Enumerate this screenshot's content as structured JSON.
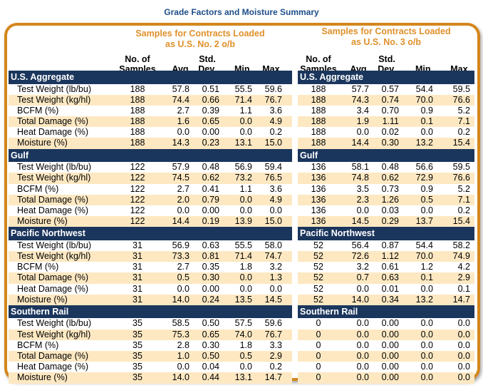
{
  "title": "Grade Factors and Moisture Summary",
  "colors": {
    "title": "#1d4e89",
    "frame": "#d4861c",
    "group_title": "#e0902a",
    "section_band": "#1b365d",
    "alt_row": "#fde8c2"
  },
  "columns": {
    "samples_line1": "No. of",
    "samples_line2": "Samples",
    "avg": "Avg.",
    "std_line1": "Std.",
    "std_line2": "Dev.",
    "min": "Min.",
    "max": "Max."
  },
  "row_labels": [
    "Test Weight (lb/bu)",
    "Test Weight (kg/hl)",
    "BCFM (%)",
    "Total Damage (%)",
    "Heat Damage (%)",
    "Moisture (%)"
  ],
  "left": {
    "group_title_line1": "Samples for Contracts Loaded",
    "group_title_line2": "as U.S. No. 2 o/b",
    "sections": [
      {
        "name": "U.S. Aggregate",
        "rows": [
          [
            "188",
            "57.8",
            "0.51",
            "55.5",
            "59.6"
          ],
          [
            "188",
            "74.4",
            "0.66",
            "71.4",
            "76.7"
          ],
          [
            "188",
            "2.7",
            "0.39",
            "1.1",
            "3.6"
          ],
          [
            "188",
            "1.6",
            "0.65",
            "0.0",
            "4.9"
          ],
          [
            "188",
            "0.0",
            "0.00",
            "0.0",
            "0.2"
          ],
          [
            "188",
            "14.3",
            "0.23",
            "13.1",
            "15.0"
          ]
        ]
      },
      {
        "name": "Gulf",
        "rows": [
          [
            "122",
            "57.9",
            "0.48",
            "56.9",
            "59.4"
          ],
          [
            "122",
            "74.5",
            "0.62",
            "73.2",
            "76.5"
          ],
          [
            "122",
            "2.7",
            "0.41",
            "1.1",
            "3.6"
          ],
          [
            "122",
            "2.0",
            "0.79",
            "0.0",
            "4.9"
          ],
          [
            "122",
            "0.0",
            "0.00",
            "0.0",
            "0.0"
          ],
          [
            "122",
            "14.4",
            "0.19",
            "13.9",
            "15.0"
          ]
        ]
      },
      {
        "name": "Pacific Northwest",
        "rows": [
          [
            "31",
            "56.9",
            "0.63",
            "55.5",
            "58.0"
          ],
          [
            "31",
            "73.3",
            "0.81",
            "71.4",
            "74.7"
          ],
          [
            "31",
            "2.7",
            "0.35",
            "1.8",
            "3.2"
          ],
          [
            "31",
            "0.5",
            "0.30",
            "0.0",
            "1.3"
          ],
          [
            "31",
            "0.0",
            "0.00",
            "0.0",
            "0.0"
          ],
          [
            "31",
            "14.0",
            "0.24",
            "13.5",
            "14.5"
          ]
        ]
      },
      {
        "name": "Southern Rail",
        "rows": [
          [
            "35",
            "58.5",
            "0.50",
            "57.5",
            "59.6"
          ],
          [
            "35",
            "75.3",
            "0.65",
            "74.0",
            "76.7"
          ],
          [
            "35",
            "2.8",
            "0.30",
            "1.8",
            "3.3"
          ],
          [
            "35",
            "1.0",
            "0.50",
            "0.5",
            "2.9"
          ],
          [
            "35",
            "0.0",
            "0.04",
            "0.0",
            "0.2"
          ],
          [
            "35",
            "14.0",
            "0.44",
            "13.1",
            "14.7"
          ]
        ]
      }
    ]
  },
  "right": {
    "group_title_line1": "Samples for Contracts Loaded",
    "group_title_line2": "as U.S. No. 3 o/b",
    "sections": [
      {
        "name": "U.S. Aggregate",
        "rows": [
          [
            "188",
            "57.7",
            "0.57",
            "54.4",
            "59.5"
          ],
          [
            "188",
            "74.3",
            "0.74",
            "70.0",
            "76.6"
          ],
          [
            "188",
            "3.4",
            "0.70",
            "0.9",
            "5.2"
          ],
          [
            "188",
            "1.9",
            "1.11",
            "0.1",
            "7.1"
          ],
          [
            "188",
            "0.0",
            "0.02",
            "0.0",
            "0.2"
          ],
          [
            "188",
            "14.4",
            "0.30",
            "13.2",
            "15.4"
          ]
        ]
      },
      {
        "name": "Gulf",
        "rows": [
          [
            "136",
            "58.1",
            "0.48",
            "56.6",
            "59.5"
          ],
          [
            "136",
            "74.8",
            "0.62",
            "72.9",
            "76.6"
          ],
          [
            "136",
            "3.5",
            "0.73",
            "0.9",
            "5.2"
          ],
          [
            "136",
            "2.3",
            "1.26",
            "0.5",
            "7.1"
          ],
          [
            "136",
            "0.0",
            "0.03",
            "0.0",
            "0.2"
          ],
          [
            "136",
            "14.5",
            "0.29",
            "13.7",
            "15.4"
          ]
        ]
      },
      {
        "name": "Pacific Northwest",
        "rows": [
          [
            "52",
            "56.4",
            "0.87",
            "54.4",
            "58.2"
          ],
          [
            "52",
            "72.6",
            "1.12",
            "70.0",
            "74.9"
          ],
          [
            "52",
            "3.2",
            "0.61",
            "1.2",
            "4.2"
          ],
          [
            "52",
            "0.7",
            "0.63",
            "0.1",
            "2.9"
          ],
          [
            "52",
            "0.0",
            "0.01",
            "0.0",
            "0.1"
          ],
          [
            "52",
            "14.0",
            "0.34",
            "13.2",
            "14.7"
          ]
        ]
      },
      {
        "name": "Southern Rail",
        "rows": [
          [
            "0",
            "0.0",
            "0.00",
            "0.0",
            "0.0"
          ],
          [
            "0",
            "0.0",
            "0.00",
            "0.0",
            "0.0"
          ],
          [
            "0",
            "0.0",
            "0.00",
            "0.0",
            "0.0"
          ],
          [
            "0",
            "0.0",
            "0.00",
            "0.0",
            "0.0"
          ],
          [
            "0",
            "0.0",
            "0.00",
            "0.0",
            "0.0"
          ],
          [
            "0",
            "0.0",
            "0.00",
            "0.0",
            "0.0"
          ]
        ]
      }
    ]
  }
}
